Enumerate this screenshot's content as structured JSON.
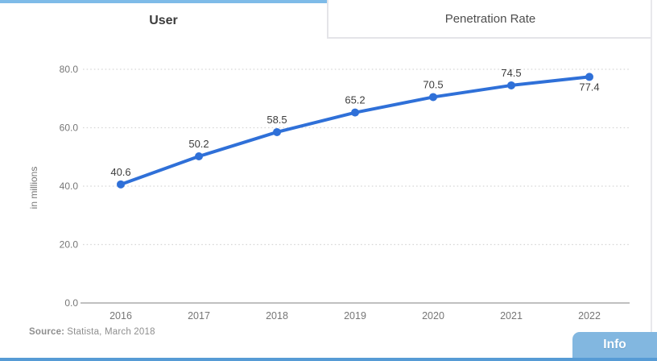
{
  "tabs": {
    "user": "User",
    "penetration_rate": "Penetration Rate"
  },
  "chart_data": {
    "type": "line",
    "title": "",
    "categories": [
      "2016",
      "2017",
      "2018",
      "2019",
      "2020",
      "2021",
      "2022"
    ],
    "series": [
      {
        "name": "User",
        "values": [
          40.6,
          50.2,
          58.5,
          65.2,
          70.5,
          74.5,
          77.4
        ]
      }
    ],
    "xlabel": "",
    "ylabel": "in millions",
    "ylim": [
      0,
      80
    ],
    "yticks": [
      "0.0",
      "20.0",
      "40.0",
      "60.0",
      "80.0"
    ],
    "grid": "horizontal-dotted",
    "legend": "none",
    "data_labels_visible": true
  },
  "source": {
    "label": "Source:",
    "text": "Statista, March 2018"
  },
  "footer": {
    "info_label": "Info"
  },
  "colors": {
    "line_blue": "#2f70d8",
    "tab_accent_blue": "#7ebbe8",
    "info_button_blue": "#82b7e0",
    "bottom_bar_blue": "#569bd5",
    "gridline_gray": "#d7d7d7",
    "axis_gray": "#9a9a9a",
    "tick_text_gray": "#767676",
    "data_label_gray": "#3d3d3d"
  }
}
